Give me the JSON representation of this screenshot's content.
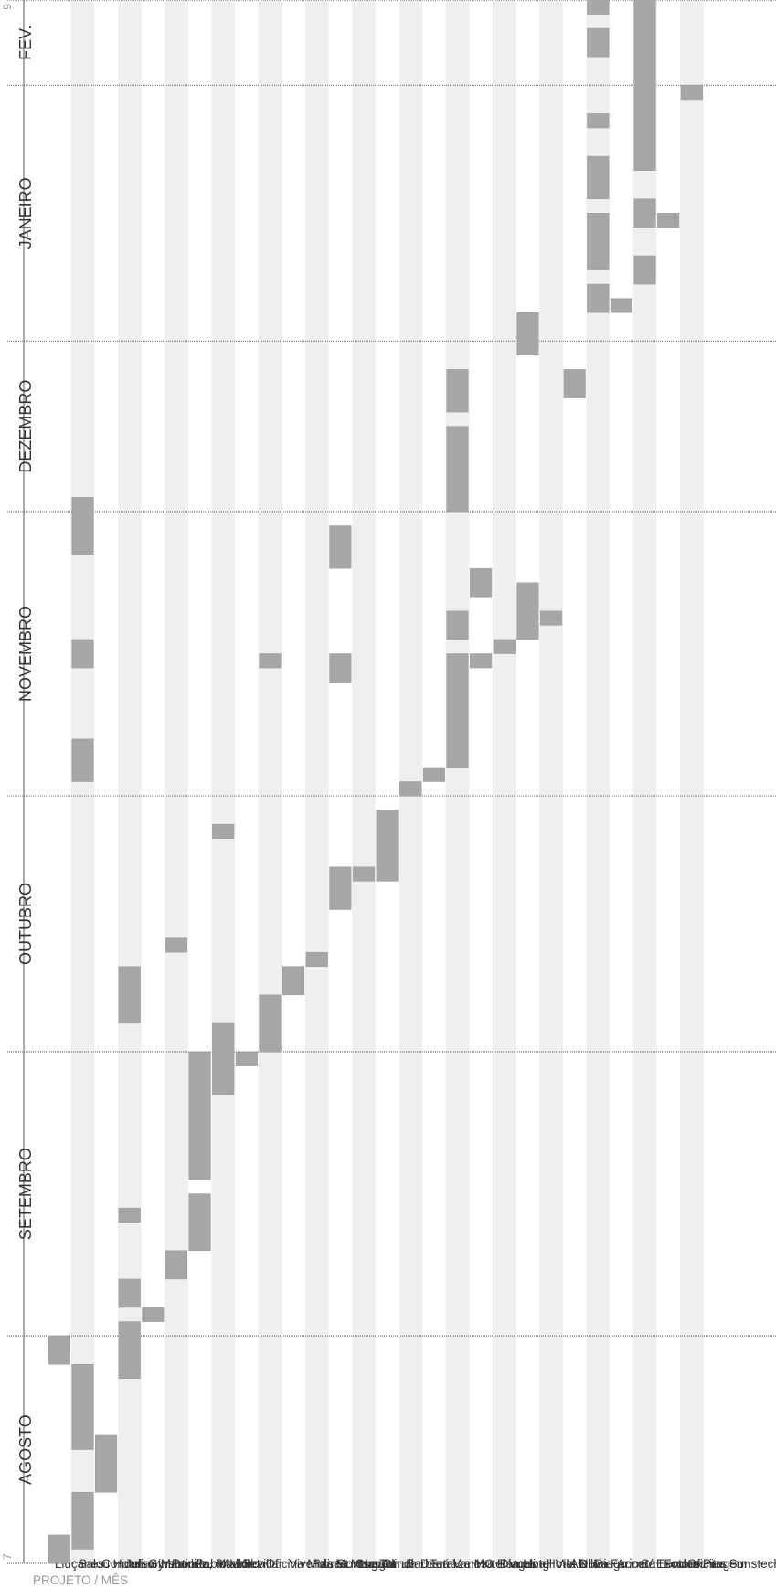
{
  "chart_data": {
    "type": "gantt",
    "header_label": "PROJETO / MÊS",
    "start_label": "7",
    "end_label": "9",
    "months": [
      "AGOSTO",
      "SETEMBRO",
      "OUTUBRO",
      "NOVEMBRO",
      "DEZEMBRO",
      "JANEIRO",
      "FEV."
    ],
    "month_lengths_weeks": [
      8,
      10,
      9,
      10,
      6,
      9,
      3
    ],
    "projects": [
      {
        "name": "Lluçanes",
        "bars": [
          [
            0.0,
            1.0
          ],
          [
            7.0,
            8.0
          ],
          [
            7.5,
            8.0
          ]
        ]
      },
      {
        "name": "Salou Hotel",
        "bars": [
          [
            0.5,
            2.5
          ],
          [
            4.0,
            7.0
          ],
          [
            27.5,
            29.0
          ],
          [
            31.5,
            32.5
          ],
          [
            35.5,
            37.5
          ]
        ]
      },
      {
        "name": "Concurso Insta.",
        "bars": [
          [
            2.5,
            4.5
          ]
        ]
      },
      {
        "name": "Julian Martinez",
        "bars": [
          [
            6.5,
            8.5
          ],
          [
            9.0,
            10.0
          ],
          [
            12.0,
            12.5
          ],
          [
            19.0,
            21.0
          ]
        ]
      },
      {
        "name": "Gymboree",
        "bars": [
          [
            8.5,
            9.0
          ]
        ]
      },
      {
        "name": "Padilla, Madrid",
        "bars": [
          [
            10.0,
            11.0
          ],
          [
            21.5,
            22.0
          ]
        ]
      },
      {
        "name": "Pablo Vallet",
        "bars": [
          [
            11.0,
            13.0
          ],
          [
            13.5,
            18.0
          ]
        ]
      },
      {
        "name": "Mallorca",
        "bars": [
          [
            16.5,
            19.0
          ],
          [
            25.5,
            26.0
          ]
        ]
      },
      {
        "name": "Sevilla",
        "bars": [
          [
            17.5,
            18.0
          ]
        ]
      },
      {
        "name": "Oficina Molins",
        "bars": [
          [
            18.0,
            20.0
          ],
          [
            31.5,
            32.0
          ]
        ]
      },
      {
        "name": "Vivenda St. Cugat",
        "bars": [
          [
            20.0,
            21.0
          ]
        ]
      },
      {
        "name": "Paseo Maragat",
        "bars": [
          [
            21.0,
            21.5
          ]
        ]
      },
      {
        "name": "Montse Turrull",
        "bars": [
          [
            23.0,
            24.5
          ],
          [
            31.0,
            32.0
          ],
          [
            35.0,
            36.5
          ]
        ]
      },
      {
        "name": "Hucart",
        "bars": [
          [
            24.0,
            24.5
          ]
        ]
      },
      {
        "name": "Clinca Dental",
        "bars": [
          [
            24.0,
            26.5
          ]
        ]
      },
      {
        "name": "Barberá",
        "bars": [
          [
            27.0,
            27.5
          ]
        ]
      },
      {
        "name": "Terraza MC",
        "bars": [
          [
            27.5,
            28.0
          ]
        ]
      },
      {
        "name": "Vanesa Ramos",
        "bars": [
          [
            28.0,
            32.0
          ],
          [
            32.5,
            33.5
          ],
          [
            37.0,
            40.0
          ],
          [
            40.5,
            42.0
          ]
        ]
      },
      {
        "name": "Hotel Vueling",
        "bars": [
          [
            31.5,
            32.0
          ],
          [
            34.0,
            35.0
          ]
        ]
      },
      {
        "name": "Diagonal",
        "bars": [
          [
            32.0,
            32.5
          ]
        ]
      },
      {
        "name": "Hotel Vila Nova",
        "bars": [
          [
            32.5,
            34.5
          ],
          [
            42.5,
            44.0
          ]
        ]
      },
      {
        "name": "Hotel D. Diego",
        "bars": [
          [
            33.0,
            33.5
          ]
        ]
      },
      {
        "name": "Alella",
        "bars": [
          [
            41.0,
            42.0
          ]
        ]
      },
      {
        "name": "La Farineta",
        "bars": [
          [
            44.0,
            45.0
          ],
          [
            45.5,
            47.5
          ],
          [
            48.0,
            49.5
          ],
          [
            50.5,
            51.0
          ],
          [
            53.0,
            54.0
          ],
          [
            54.5,
            55.0
          ]
        ]
      },
      {
        "name": "Accord London",
        "bars": [
          [
            44.0,
            44.5
          ]
        ]
      },
      {
        "name": "C/ Escoles Pies",
        "bars": [
          [
            45.0,
            46.0
          ],
          [
            47.0,
            48.0
          ],
          [
            49.0,
            55.0
          ]
        ]
      },
      {
        "name": "Fotomontagem",
        "bars": [
          [
            47.0,
            47.5
          ]
        ]
      },
      {
        "name": "Oficina Sunstech",
        "bars": [
          [
            51.5,
            52.0
          ]
        ]
      }
    ]
  }
}
